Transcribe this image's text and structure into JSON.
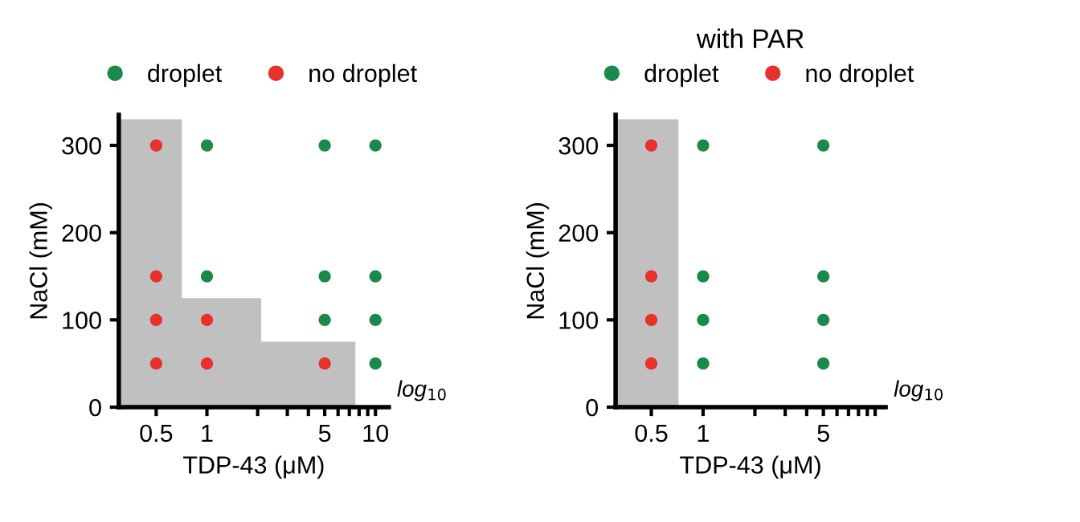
{
  "chart_data": [
    {
      "type": "scatter",
      "xlabel": "TDP-43 (μM)",
      "ylabel": "NaCl (mM)",
      "log": "x",
      "xlim": [
        0.3,
        12
      ],
      "ylim": [
        0,
        335
      ],
      "xticks": [
        0.5,
        1,
        {
          "value": 2,
          "label": null
        },
        {
          "value": 3,
          "label": null
        },
        {
          "value": 4,
          "label": null
        },
        5,
        {
          "value": 6,
          "label": null
        },
        {
          "value": 7,
          "label": null
        },
        {
          "value": 8,
          "label": null
        },
        {
          "value": 9,
          "label": null
        },
        10
      ],
      "yticks": [
        0,
        100,
        200,
        300
      ],
      "grid": false,
      "legend": "top",
      "annotations": [
        "log$_{10}$"
      ],
      "series": [
        {
          "type": "area",
          "color": "#c0c0c0",
          "x": [
            0.3,
            0.71,
            0.71,
            2.1,
            2.1,
            7.6
          ],
          "values": [
            330,
            330,
            125,
            125,
            75,
            75
          ]
        },
        {
          "name": "droplet",
          "color": "#1a8a4a",
          "marker": "circle",
          "x": [
            1,
            5,
            10,
            1,
            5,
            10,
            5,
            10,
            10
          ],
          "values": [
            300,
            300,
            300,
            150,
            150,
            150,
            100,
            100,
            50
          ]
        },
        {
          "name": "no droplet",
          "color": "#e8302c",
          "marker": "circle",
          "x": [
            0.5,
            0.5,
            0.5,
            1,
            0.5,
            1,
            5
          ],
          "values": [
            300,
            150,
            100,
            100,
            50,
            50,
            50
          ]
        }
      ]
    },
    {
      "type": "scatter",
      "title": "with PAR",
      "xlabel": "TDP-43 (μM)",
      "ylabel": "NaCl (mM)",
      "log": "x",
      "xlim": [
        0.31,
        11.5
      ],
      "ylim": [
        0,
        335
      ],
      "xticks": [
        0.5,
        1,
        {
          "value": 2,
          "label": null
        },
        {
          "value": 3,
          "label": null
        },
        {
          "value": 4,
          "label": null
        },
        5,
        {
          "value": 6,
          "label": null
        },
        {
          "value": 7,
          "label": null
        },
        {
          "value": 8,
          "label": null
        },
        {
          "value": 9,
          "label": null
        },
        {
          "value": 10,
          "label": null
        }
      ],
      "yticks": [
        0,
        100,
        200,
        300
      ],
      "grid": false,
      "legend": "top",
      "annotations": [
        "log$_{10}$"
      ],
      "series": [
        {
          "type": "area",
          "color": "#c0c0c0",
          "x": [
            0.31,
            0.72
          ],
          "values": [
            330,
            330
          ]
        },
        {
          "name": "droplet",
          "color": "#1a8a4a",
          "marker": "circle",
          "x": [
            1,
            1,
            1,
            1,
            5,
            5,
            5,
            5
          ],
          "values": [
            300,
            150,
            100,
            50,
            300,
            150,
            100,
            50
          ]
        },
        {
          "name": "no droplet",
          "color": "#e8302c",
          "marker": "circle",
          "x": [
            0.5,
            0.5,
            0.5,
            0.5
          ],
          "values": [
            300,
            150,
            100,
            50
          ]
        }
      ]
    }
  ]
}
